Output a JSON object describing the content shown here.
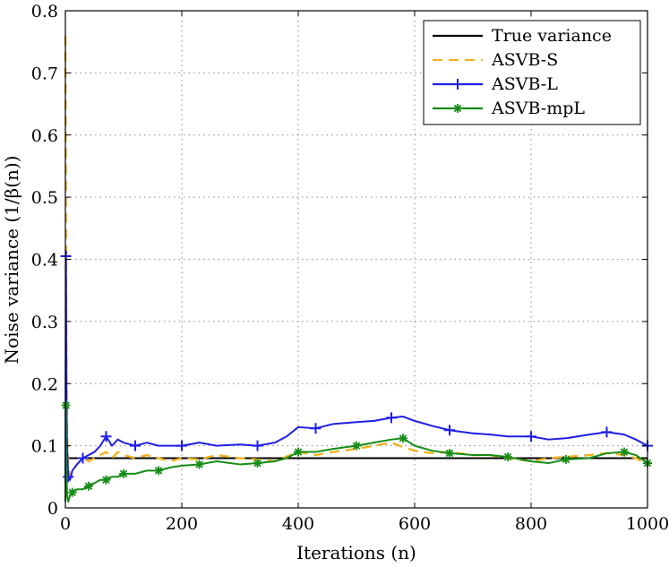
{
  "chart_data": {
    "type": "line",
    "xlabel": "Iterations (n)",
    "ylabel": "Noise variance (1/β(n))",
    "xlim": [
      0,
      1000
    ],
    "ylim": [
      0,
      0.8
    ],
    "xticks": [
      "0",
      "200",
      "400",
      "600",
      "800",
      "1000"
    ],
    "yticks": [
      "0",
      "0.1",
      "0.2",
      "0.3",
      "0.4",
      "0.5",
      "0.6",
      "0.7",
      "0.8"
    ],
    "grid": true,
    "legend_position": "top-right",
    "series": [
      {
        "name": "True variance",
        "color": "#000000",
        "style": "solid",
        "marker": "none",
        "x": [
          0,
          1000
        ],
        "y": [
          0.08,
          0.08
        ]
      },
      {
        "name": "ASVB-S",
        "color": "#f0b323",
        "style": "dashed",
        "marker": "none",
        "x": [
          0,
          1,
          2,
          3,
          5,
          8,
          12,
          20,
          30,
          40,
          50,
          60,
          70,
          80,
          90,
          100,
          120,
          140,
          160,
          180,
          200,
          230,
          260,
          300,
          330,
          360,
          400,
          430,
          460,
          500,
          530,
          560,
          580,
          600,
          630,
          660,
          700,
          730,
          760,
          800,
          830,
          860,
          900,
          930,
          960,
          980,
          1000
        ],
        "y": [
          0.76,
          0.5,
          0.2,
          0.12,
          0.07,
          0.05,
          0.06,
          0.07,
          0.08,
          0.075,
          0.08,
          0.085,
          0.09,
          0.08,
          0.09,
          0.085,
          0.08,
          0.085,
          0.08,
          0.075,
          0.08,
          0.078,
          0.085,
          0.08,
          0.078,
          0.075,
          0.09,
          0.085,
          0.09,
          0.095,
          0.1,
          0.105,
          0.098,
          0.092,
          0.088,
          0.09,
          0.085,
          0.085,
          0.08,
          0.075,
          0.08,
          0.082,
          0.085,
          0.088,
          0.085,
          0.08,
          0.07
        ]
      },
      {
        "name": "ASVB-L",
        "color": "#1f1fe5",
        "style": "solid",
        "marker": "plus",
        "x": [
          0,
          1,
          2,
          3,
          5,
          8,
          12,
          20,
          30,
          40,
          50,
          60,
          70,
          80,
          90,
          100,
          120,
          140,
          160,
          180,
          200,
          230,
          260,
          300,
          330,
          360,
          380,
          400,
          430,
          460,
          500,
          530,
          560,
          580,
          600,
          630,
          660,
          700,
          730,
          760,
          800,
          830,
          860,
          900,
          930,
          960,
          980,
          1000
        ],
        "y": [
          0.04,
          0.405,
          0.17,
          0.1,
          0.05,
          0.045,
          0.06,
          0.07,
          0.08,
          0.085,
          0.09,
          0.1,
          0.115,
          0.1,
          0.11,
          0.105,
          0.1,
          0.105,
          0.1,
          0.1,
          0.1,
          0.105,
          0.1,
          0.102,
          0.1,
          0.105,
          0.115,
          0.13,
          0.128,
          0.135,
          0.138,
          0.14,
          0.145,
          0.147,
          0.14,
          0.132,
          0.125,
          0.12,
          0.118,
          0.115,
          0.115,
          0.11,
          0.112,
          0.118,
          0.122,
          0.118,
          0.11,
          0.1
        ]
      },
      {
        "name": "ASVB-mpL",
        "color": "#168c16",
        "style": "solid",
        "marker": "star",
        "x": [
          0,
          1,
          2,
          3,
          5,
          8,
          12,
          20,
          30,
          40,
          50,
          60,
          70,
          80,
          90,
          100,
          120,
          140,
          160,
          180,
          200,
          230,
          260,
          300,
          330,
          360,
          380,
          400,
          430,
          460,
          500,
          530,
          560,
          580,
          600,
          630,
          660,
          700,
          730,
          760,
          800,
          830,
          860,
          900,
          930,
          960,
          980,
          1000
        ],
        "y": [
          0.01,
          0.165,
          0.05,
          0.02,
          0.01,
          0.02,
          0.025,
          0.03,
          0.03,
          0.035,
          0.04,
          0.045,
          0.045,
          0.05,
          0.05,
          0.055,
          0.055,
          0.06,
          0.06,
          0.065,
          0.068,
          0.07,
          0.075,
          0.07,
          0.072,
          0.075,
          0.08,
          0.09,
          0.09,
          0.095,
          0.1,
          0.105,
          0.11,
          0.112,
          0.1,
          0.092,
          0.088,
          0.085,
          0.085,
          0.082,
          0.075,
          0.072,
          0.078,
          0.08,
          0.088,
          0.09,
          0.085,
          0.072
        ]
      }
    ]
  }
}
